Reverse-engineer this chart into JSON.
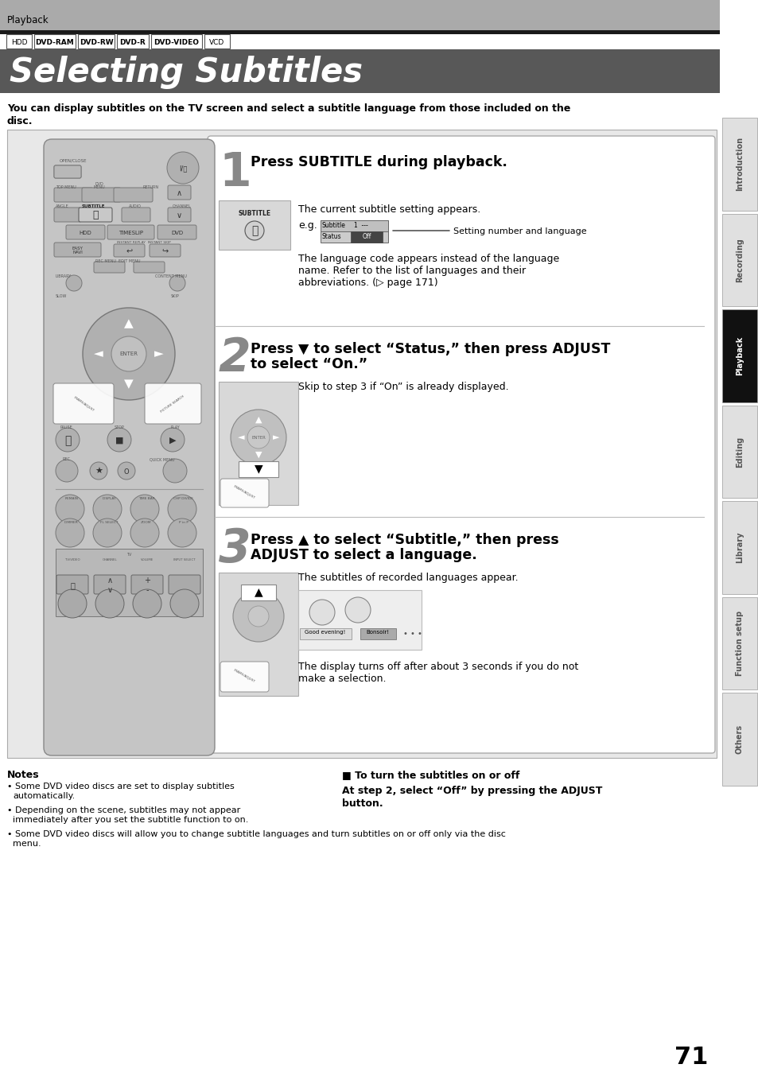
{
  "page_bg": "#ffffff",
  "header_bg": "#aaaaaa",
  "header_text": "Playback",
  "title_bg": "#585858",
  "title_text": "Selecting Subtitles",
  "title_text_color": "#ffffff",
  "format_tags": [
    "HDD",
    "DVD-RAM",
    "DVD-RW",
    "DVD-R",
    "DVD-VIDEO",
    "VCD"
  ],
  "format_tags_bold": [
    "DVD-RAM",
    "DVD-RW",
    "DVD-R",
    "DVD-VIDEO"
  ],
  "intro_text1": "You can display subtitles on the TV screen and select a subtitle language from those included on the",
  "intro_text2": "disc.",
  "step1_num": "1",
  "step1_title": "Press SUBTITLE during playback.",
  "step1_text1": "The current subtitle setting appears.",
  "step1_eg": "e.g.",
  "step1_eg_label": "Setting number and language",
  "step1_text2": "The language code appears instead of the language\nname. Refer to the list of languages and their\nabbreviations. (▷ page 171)",
  "step2_num": "2",
  "step2_title_line1": "Press ▼ to select “Status,” then press ADJUST",
  "step2_title_line2": "to select “On.”",
  "step2_text": "Skip to step 3 if “On” is already displayed.",
  "step3_num": "3",
  "step3_title_line1": "Press ▲ to select “Subtitle,” then press",
  "step3_title_line2": "ADJUST to select a language.",
  "step3_text1": "The subtitles of recorded languages appear.",
  "step3_text2": "The display turns off after about 3 seconds if you do not\nmake a selection.",
  "notes_title": "Notes",
  "note1": "Some DVD video discs are set to display subtitles",
  "note1b": "automatically.",
  "note2": "Depending on the scene, subtitles may not appear",
  "note2b": "immediately after you set the subtitle function to on.",
  "note3": "Some DVD video discs will allow you to change subtitle",
  "note3b": "languages and turn subtitles on or off only via the disc",
  "note3c": "menu.",
  "tip_title": "■ To turn the subtitles on or off",
  "tip_text1": "At step 2, select “Off” by pressing the ADJUST",
  "tip_text2": "button.",
  "sidebar_labels": [
    "Introduction",
    "Recording",
    "Playback",
    "Editing",
    "Library",
    "Function setup",
    "Others"
  ],
  "sidebar_active": "Playback",
  "page_number": "71",
  "remote_bg": "#c8c8c8",
  "remote_btn_bg": "#b0b0b0",
  "content_box_bg": "#f8f8f8"
}
